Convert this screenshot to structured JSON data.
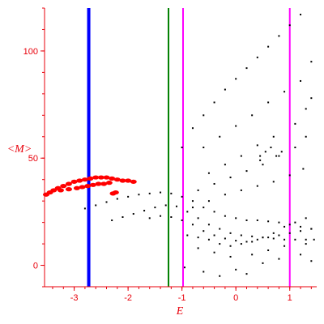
{
  "chart_data": {
    "type": "scatter",
    "title": "",
    "xlabel": "E",
    "ylabel": "<M>",
    "xlim": [
      -3.55,
      1.5
    ],
    "ylim": [
      -10,
      120
    ],
    "xticks": [
      -3,
      -2,
      -1,
      0,
      1
    ],
    "yticks": [
      0,
      50,
      100
    ],
    "grid": false,
    "colors": {
      "axis": "#e8000b",
      "red_series": "#ff0000",
      "black_series": "#000000",
      "blue_line": "#0000ff",
      "green_line": "#008000",
      "magenta_line": "#ff00ff"
    },
    "vertical_lines": [
      {
        "x": -2.73,
        "color": "blue"
      },
      {
        "x": -1.25,
        "color": "green"
      },
      {
        "x": -0.98,
        "color": "magenta"
      },
      {
        "x": 1.0,
        "color": "magenta"
      }
    ],
    "series": [
      {
        "color": "red",
        "points": [
          [
            -3.52,
            33
          ],
          [
            -3.45,
            34
          ],
          [
            -3.38,
            35
          ],
          [
            -3.3,
            36
          ],
          [
            -3.2,
            37
          ],
          [
            -3.1,
            38
          ],
          [
            -3.0,
            39
          ],
          [
            -2.9,
            39.5
          ],
          [
            -2.8,
            40
          ],
          [
            -2.7,
            40.5
          ],
          [
            -2.6,
            41
          ],
          [
            -2.5,
            41
          ],
          [
            -2.4,
            41
          ],
          [
            -2.3,
            40.5
          ],
          [
            -2.2,
            40
          ],
          [
            -2.1,
            39.5
          ],
          [
            -2.0,
            39.5
          ],
          [
            -1.9,
            39
          ],
          [
            -3.25,
            35
          ],
          [
            -3.1,
            35.5
          ],
          [
            -2.95,
            36
          ],
          [
            -2.85,
            36.5
          ],
          [
            -2.75,
            37
          ],
          [
            -2.65,
            37.5
          ],
          [
            -2.55,
            38
          ],
          [
            -2.45,
            38
          ],
          [
            -2.35,
            38.5
          ],
          [
            -2.28,
            33.5
          ],
          [
            -2.23,
            34
          ]
        ]
      },
      {
        "color": "black",
        "points": [
          [
            -1.0,
            55
          ],
          [
            -0.8,
            64
          ],
          [
            -0.6,
            70
          ],
          [
            -0.4,
            76
          ],
          [
            -0.2,
            82
          ],
          [
            0.0,
            87
          ],
          [
            0.2,
            92
          ],
          [
            0.4,
            97
          ],
          [
            0.6,
            102
          ],
          [
            0.8,
            107
          ],
          [
            1.0,
            112
          ],
          [
            1.2,
            117
          ],
          [
            1.4,
            122
          ],
          [
            -0.6,
            55
          ],
          [
            -0.3,
            60
          ],
          [
            0.0,
            65
          ],
          [
            0.3,
            70
          ],
          [
            0.6,
            76
          ],
          [
            0.9,
            81
          ],
          [
            1.2,
            86
          ],
          [
            1.4,
            95
          ],
          [
            -0.5,
            43
          ],
          [
            -0.2,
            47
          ],
          [
            0.1,
            51
          ],
          [
            0.4,
            56
          ],
          [
            0.7,
            60
          ],
          [
            1.1,
            66
          ],
          [
            1.3,
            73
          ],
          [
            1.4,
            78
          ],
          [
            -0.7,
            35
          ],
          [
            -0.4,
            38
          ],
          [
            -0.1,
            41
          ],
          [
            0.2,
            44
          ],
          [
            0.5,
            47
          ],
          [
            0.8,
            51
          ],
          [
            1.1,
            55
          ],
          [
            1.3,
            60
          ],
          [
            -0.8,
            27
          ],
          [
            -0.5,
            30
          ],
          [
            -0.2,
            33
          ],
          [
            0.1,
            35
          ],
          [
            0.4,
            37
          ],
          [
            0.7,
            39
          ],
          [
            1.0,
            42
          ],
          [
            1.25,
            45
          ],
          [
            0.45,
            51
          ],
          [
            0.55,
            53
          ],
          [
            0.65,
            55
          ],
          [
            0.75,
            51
          ],
          [
            0.85,
            53
          ],
          [
            0.45,
            49
          ],
          [
            -2.8,
            26.5
          ],
          [
            -2.6,
            28
          ],
          [
            -2.4,
            29.5
          ],
          [
            -2.2,
            31
          ],
          [
            -2.0,
            32
          ],
          [
            -1.8,
            33
          ],
          [
            -1.6,
            33.5
          ],
          [
            -1.4,
            34
          ],
          [
            -1.2,
            33.5
          ],
          [
            -1.0,
            32
          ],
          [
            -0.8,
            30
          ],
          [
            -0.6,
            27
          ],
          [
            -0.4,
            25
          ],
          [
            -0.2,
            23
          ],
          [
            0.0,
            22
          ],
          [
            0.2,
            21
          ],
          [
            0.4,
            21
          ],
          [
            0.6,
            20.5
          ],
          [
            0.8,
            20
          ],
          [
            1.0,
            19
          ],
          [
            1.2,
            18
          ],
          [
            1.4,
            17
          ],
          [
            -2.3,
            21
          ],
          [
            -2.1,
            22.5
          ],
          [
            -1.9,
            24
          ],
          [
            -1.7,
            25.5
          ],
          [
            -1.5,
            27
          ],
          [
            -1.3,
            28
          ],
          [
            -1.1,
            27.5
          ],
          [
            -0.9,
            25
          ],
          [
            -0.7,
            22
          ],
          [
            -0.5,
            19
          ],
          [
            -0.3,
            17
          ],
          [
            -0.1,
            15
          ],
          [
            0.1,
            14
          ],
          [
            0.3,
            13.5
          ],
          [
            0.5,
            13
          ],
          [
            0.7,
            12.5
          ],
          [
            0.9,
            12
          ],
          [
            1.1,
            12
          ],
          [
            1.3,
            12
          ],
          [
            1.45,
            12
          ],
          [
            -1.6,
            22
          ],
          [
            -1.4,
            23
          ],
          [
            -1.2,
            22.5
          ],
          [
            -1.0,
            21
          ],
          [
            -0.8,
            19
          ],
          [
            -0.6,
            16
          ],
          [
            -0.4,
            14
          ],
          [
            -0.2,
            12.5
          ],
          [
            0.0,
            11.5
          ],
          [
            0.2,
            11
          ],
          [
            0.4,
            12
          ],
          [
            0.6,
            13
          ],
          [
            0.8,
            14
          ],
          [
            1.0,
            15
          ],
          [
            1.2,
            16
          ],
          [
            1.4,
            17
          ],
          [
            -0.9,
            14
          ],
          [
            -0.7,
            13
          ],
          [
            -0.5,
            12
          ],
          [
            -0.3,
            10
          ],
          [
            -0.1,
            9
          ],
          [
            0.1,
            10
          ],
          [
            0.3,
            11
          ],
          [
            0.5,
            13
          ],
          [
            0.7,
            15
          ],
          [
            0.9,
            18
          ],
          [
            1.1,
            20
          ],
          [
            1.3,
            22
          ],
          [
            -0.95,
            -1
          ],
          [
            -0.6,
            -3
          ],
          [
            -0.3,
            -5
          ],
          [
            0.0,
            -2
          ],
          [
            0.2,
            -4
          ],
          [
            0.5,
            1
          ],
          [
            0.8,
            3
          ],
          [
            1.2,
            5
          ],
          [
            1.4,
            2
          ],
          [
            -0.7,
            8
          ],
          [
            -0.4,
            6
          ],
          [
            -0.1,
            4
          ],
          [
            0.3,
            5
          ],
          [
            0.6,
            7
          ],
          [
            0.9,
            9
          ],
          [
            1.3,
            10
          ]
        ]
      }
    ]
  }
}
